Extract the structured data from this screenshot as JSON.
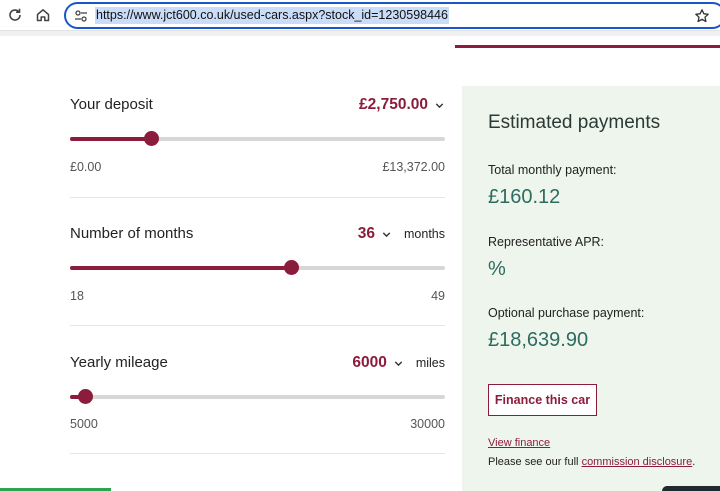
{
  "browser": {
    "url": "https://www.jct600.co.uk/used-cars.aspx?stock_id=1230598446"
  },
  "deposit": {
    "label": "Your deposit",
    "value": "£2,750.00",
    "min_label": "£0.00",
    "max_label": "£13,372.00",
    "level": 0.216
  },
  "months": {
    "label": "Number of months",
    "value": "36",
    "unit": "months",
    "min_label": "18",
    "max_label": "49",
    "level": 0.59
  },
  "mileage": {
    "label": "Yearly mileage",
    "value": "6000",
    "unit": "miles",
    "min_label": "5000",
    "max_label": "30000",
    "level": 0.04
  },
  "payments": {
    "title": "Estimated payments",
    "monthly_label": "Total monthly payment:",
    "monthly_value": "£160.12",
    "apr_label": "Representative APR:",
    "apr_value": "%",
    "optional_label": "Optional purchase payment:",
    "optional_value": "£18,639.90",
    "finance_button": "Finance this car",
    "view_finance": "View finance",
    "disclosure_text": "Please see our full",
    "disclosure_link": "commission disclosure",
    "disclosure_end": "."
  },
  "colors": {
    "accent": "#8c1c3c",
    "panel_bg": "#eef5ec",
    "value_green": "#2e6b60"
  }
}
